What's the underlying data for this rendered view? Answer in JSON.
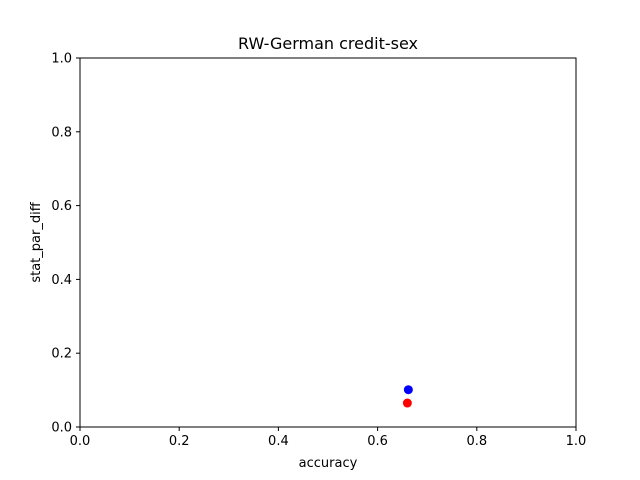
{
  "chart_data": {
    "type": "scatter",
    "title": "RW-German credit-sex",
    "xlabel": "accuracy",
    "ylabel": "stat_par_diff",
    "xlim": [
      0,
      1
    ],
    "ylim": [
      0,
      1
    ],
    "xticks": [
      "0.0",
      "0.2",
      "0.4",
      "0.6",
      "0.8",
      "1.0"
    ],
    "yticks": [
      "0.0",
      "0.2",
      "0.4",
      "0.6",
      "0.8",
      "1.0"
    ],
    "grid": false,
    "points": [
      {
        "x": 0.662,
        "y": 0.101,
        "color": "#0000ff"
      },
      {
        "x": 0.66,
        "y": 0.065,
        "color": "#ff0000"
      }
    ]
  }
}
